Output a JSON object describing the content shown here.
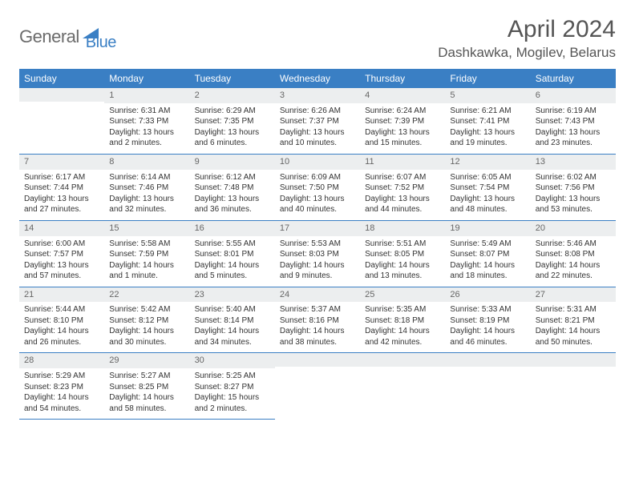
{
  "brand": {
    "part1": "General",
    "part2": "Blue"
  },
  "title": "April 2024",
  "location": "Dashkawka, Mogilev, Belarus",
  "colors": {
    "primary": "#3a7fc4",
    "header_bg": "#eceeef",
    "text": "#333333",
    "muted": "#6b6b6b",
    "background": "#ffffff"
  },
  "daynames": [
    "Sunday",
    "Monday",
    "Tuesday",
    "Wednesday",
    "Thursday",
    "Friday",
    "Saturday"
  ],
  "weeks": [
    [
      {
        "n": "",
        "sr": "",
        "ss": "",
        "dl": ""
      },
      {
        "n": "1",
        "sr": "Sunrise: 6:31 AM",
        "ss": "Sunset: 7:33 PM",
        "dl": "Daylight: 13 hours and 2 minutes."
      },
      {
        "n": "2",
        "sr": "Sunrise: 6:29 AM",
        "ss": "Sunset: 7:35 PM",
        "dl": "Daylight: 13 hours and 6 minutes."
      },
      {
        "n": "3",
        "sr": "Sunrise: 6:26 AM",
        "ss": "Sunset: 7:37 PM",
        "dl": "Daylight: 13 hours and 10 minutes."
      },
      {
        "n": "4",
        "sr": "Sunrise: 6:24 AM",
        "ss": "Sunset: 7:39 PM",
        "dl": "Daylight: 13 hours and 15 minutes."
      },
      {
        "n": "5",
        "sr": "Sunrise: 6:21 AM",
        "ss": "Sunset: 7:41 PM",
        "dl": "Daylight: 13 hours and 19 minutes."
      },
      {
        "n": "6",
        "sr": "Sunrise: 6:19 AM",
        "ss": "Sunset: 7:43 PM",
        "dl": "Daylight: 13 hours and 23 minutes."
      }
    ],
    [
      {
        "n": "7",
        "sr": "Sunrise: 6:17 AM",
        "ss": "Sunset: 7:44 PM",
        "dl": "Daylight: 13 hours and 27 minutes."
      },
      {
        "n": "8",
        "sr": "Sunrise: 6:14 AM",
        "ss": "Sunset: 7:46 PM",
        "dl": "Daylight: 13 hours and 32 minutes."
      },
      {
        "n": "9",
        "sr": "Sunrise: 6:12 AM",
        "ss": "Sunset: 7:48 PM",
        "dl": "Daylight: 13 hours and 36 minutes."
      },
      {
        "n": "10",
        "sr": "Sunrise: 6:09 AM",
        "ss": "Sunset: 7:50 PM",
        "dl": "Daylight: 13 hours and 40 minutes."
      },
      {
        "n": "11",
        "sr": "Sunrise: 6:07 AM",
        "ss": "Sunset: 7:52 PM",
        "dl": "Daylight: 13 hours and 44 minutes."
      },
      {
        "n": "12",
        "sr": "Sunrise: 6:05 AM",
        "ss": "Sunset: 7:54 PM",
        "dl": "Daylight: 13 hours and 48 minutes."
      },
      {
        "n": "13",
        "sr": "Sunrise: 6:02 AM",
        "ss": "Sunset: 7:56 PM",
        "dl": "Daylight: 13 hours and 53 minutes."
      }
    ],
    [
      {
        "n": "14",
        "sr": "Sunrise: 6:00 AM",
        "ss": "Sunset: 7:57 PM",
        "dl": "Daylight: 13 hours and 57 minutes."
      },
      {
        "n": "15",
        "sr": "Sunrise: 5:58 AM",
        "ss": "Sunset: 7:59 PM",
        "dl": "Daylight: 14 hours and 1 minute."
      },
      {
        "n": "16",
        "sr": "Sunrise: 5:55 AM",
        "ss": "Sunset: 8:01 PM",
        "dl": "Daylight: 14 hours and 5 minutes."
      },
      {
        "n": "17",
        "sr": "Sunrise: 5:53 AM",
        "ss": "Sunset: 8:03 PM",
        "dl": "Daylight: 14 hours and 9 minutes."
      },
      {
        "n": "18",
        "sr": "Sunrise: 5:51 AM",
        "ss": "Sunset: 8:05 PM",
        "dl": "Daylight: 14 hours and 13 minutes."
      },
      {
        "n": "19",
        "sr": "Sunrise: 5:49 AM",
        "ss": "Sunset: 8:07 PM",
        "dl": "Daylight: 14 hours and 18 minutes."
      },
      {
        "n": "20",
        "sr": "Sunrise: 5:46 AM",
        "ss": "Sunset: 8:08 PM",
        "dl": "Daylight: 14 hours and 22 minutes."
      }
    ],
    [
      {
        "n": "21",
        "sr": "Sunrise: 5:44 AM",
        "ss": "Sunset: 8:10 PM",
        "dl": "Daylight: 14 hours and 26 minutes."
      },
      {
        "n": "22",
        "sr": "Sunrise: 5:42 AM",
        "ss": "Sunset: 8:12 PM",
        "dl": "Daylight: 14 hours and 30 minutes."
      },
      {
        "n": "23",
        "sr": "Sunrise: 5:40 AM",
        "ss": "Sunset: 8:14 PM",
        "dl": "Daylight: 14 hours and 34 minutes."
      },
      {
        "n": "24",
        "sr": "Sunrise: 5:37 AM",
        "ss": "Sunset: 8:16 PM",
        "dl": "Daylight: 14 hours and 38 minutes."
      },
      {
        "n": "25",
        "sr": "Sunrise: 5:35 AM",
        "ss": "Sunset: 8:18 PM",
        "dl": "Daylight: 14 hours and 42 minutes."
      },
      {
        "n": "26",
        "sr": "Sunrise: 5:33 AM",
        "ss": "Sunset: 8:19 PM",
        "dl": "Daylight: 14 hours and 46 minutes."
      },
      {
        "n": "27",
        "sr": "Sunrise: 5:31 AM",
        "ss": "Sunset: 8:21 PM",
        "dl": "Daylight: 14 hours and 50 minutes."
      }
    ],
    [
      {
        "n": "28",
        "sr": "Sunrise: 5:29 AM",
        "ss": "Sunset: 8:23 PM",
        "dl": "Daylight: 14 hours and 54 minutes."
      },
      {
        "n": "29",
        "sr": "Sunrise: 5:27 AM",
        "ss": "Sunset: 8:25 PM",
        "dl": "Daylight: 14 hours and 58 minutes."
      },
      {
        "n": "30",
        "sr": "Sunrise: 5:25 AM",
        "ss": "Sunset: 8:27 PM",
        "dl": "Daylight: 15 hours and 2 minutes."
      },
      {
        "n": "",
        "sr": "",
        "ss": "",
        "dl": ""
      },
      {
        "n": "",
        "sr": "",
        "ss": "",
        "dl": ""
      },
      {
        "n": "",
        "sr": "",
        "ss": "",
        "dl": ""
      },
      {
        "n": "",
        "sr": "",
        "ss": "",
        "dl": ""
      }
    ]
  ]
}
